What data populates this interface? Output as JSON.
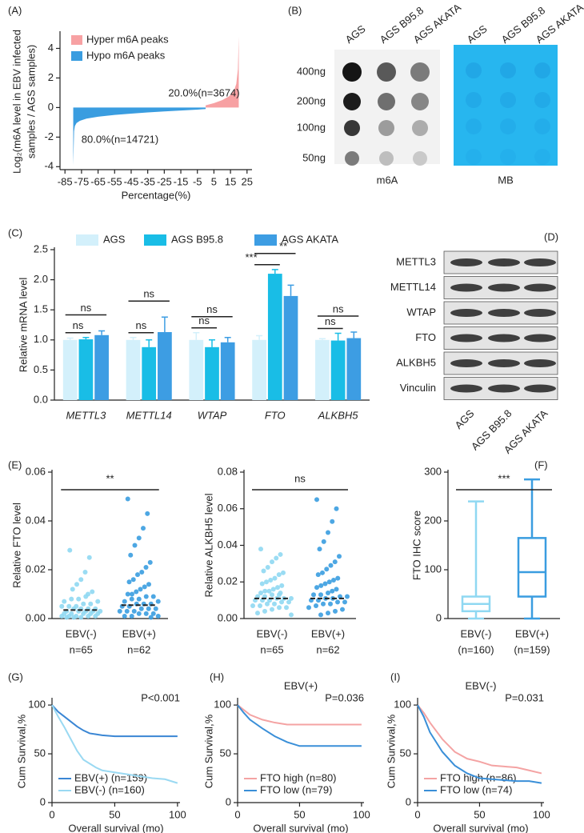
{
  "chart_data": [
    {
      "type": "area",
      "panel_label": "(A)",
      "x_label": "Percentage(%)",
      "y_label": [
        "Log₂(m6A level in EBV infected",
        "samples / AGS samples)"
      ],
      "xlim": [
        -88,
        28
      ],
      "xticks": [
        -85,
        -75,
        -65,
        -55,
        -45,
        -35,
        -25,
        -15,
        -5,
        5,
        15,
        25
      ],
      "ylim": [
        -4.2,
        5
      ],
      "yticks": [
        -4,
        -2,
        0,
        2,
        4
      ],
      "series": [
        {
          "name": "Hyper m6A peaks",
          "color": "#f7a1a3",
          "x": [
            0,
            0,
            5,
            10,
            14,
            17,
            18.5,
            19.5,
            20,
            20
          ],
          "values": [
            0,
            0.15,
            0.3,
            0.5,
            0.75,
            1.1,
            1.6,
            2.6,
            4.8,
            0
          ]
        },
        {
          "name": "Hypo m6A peaks",
          "color": "#3a9de0",
          "x": [
            -80,
            -80,
            -79.5,
            -79,
            -78,
            -76,
            -72,
            -65,
            -55,
            -45,
            -35,
            -25,
            -15,
            -5,
            0,
            0
          ],
          "values": [
            0,
            -3.9,
            -1.6,
            -1.25,
            -1.05,
            -0.9,
            -0.75,
            -0.62,
            -0.5,
            -0.41,
            -0.33,
            -0.26,
            -0.2,
            -0.14,
            -0.1,
            0
          ]
        }
      ],
      "annotations": [
        "20.0%(n=3674)",
        "80.0%(n=14721)"
      ]
    },
    {
      "type": "bar",
      "panel_label": "(C)",
      "y_label": "Relative mRNA level",
      "categories": [
        "METTL3",
        "METTL14",
        "WTAP",
        "FTO",
        "ALKBH5"
      ],
      "ylim": [
        0,
        2.5
      ],
      "yticks": [
        {
          "value": 0,
          "label": "0.0"
        },
        0.5,
        {
          "value": 1,
          "label": "1.0"
        },
        1.5,
        {
          "value": 2,
          "label": "2.0"
        },
        2.5
      ],
      "series": [
        {
          "name": "AGS",
          "color": "#d3f0fb",
          "values": [
            1,
            1,
            1,
            1,
            1
          ],
          "errors": [
            0.03,
            0.04,
            0.12,
            0.07,
            0.02
          ]
        },
        {
          "name": "AGS B95.8",
          "color": "#19bde6",
          "values": [
            1.01,
            0.88,
            0.88,
            2.1,
            0.99
          ],
          "errors": [
            0.03,
            0.12,
            0.12,
            0.07,
            0.12
          ]
        },
        {
          "name": "AGS AKATA",
          "color": "#3d9de3",
          "values": [
            1.08,
            1.13,
            0.96,
            1.73,
            1.03
          ],
          "errors": [
            0.07,
            0.25,
            0.08,
            0.18,
            0.1
          ]
        }
      ],
      "significance": [
        [
          "ns",
          "ns"
        ],
        [
          "ns",
          "ns"
        ],
        [
          "ns",
          "ns"
        ],
        [
          "***",
          "**"
        ],
        [
          "ns",
          "ns"
        ]
      ]
    },
    {
      "type": "strip",
      "panel_label": "(E)",
      "y_label": "Relative FTO level",
      "significance": "**",
      "ylim": [
        0,
        0.06
      ],
      "yticks": [
        {
          "value": 0,
          "label": "0.00"
        },
        0.02,
        0.04,
        0.06
      ],
      "groups": [
        {
          "name": "EBV(-)",
          "n_label": "n=65",
          "color": "#8fd8f2",
          "median": 0.0035,
          "values": [
            0.028,
            0.025,
            0.019,
            0.016,
            0.014,
            0.012,
            0.011,
            0.01,
            0.009,
            0.008,
            0.008,
            0.007,
            0.007,
            0.006,
            0.006,
            0.005,
            0.005,
            0.005,
            0.004,
            0.004,
            0.004,
            0.004,
            0.003,
            0.003,
            0.003,
            0.003,
            0.003,
            0.002,
            0.002,
            0.002,
            0.002,
            0.002,
            0.001,
            0.001,
            0.001,
            0.001,
            0.001,
            0.0005,
            0.0005,
            0.0005
          ]
        },
        {
          "name": "EBV(+)",
          "n_label": "n=62",
          "color": "#3a9de0",
          "median": 0.0055,
          "values": [
            0.049,
            0.043,
            0.037,
            0.033,
            0.03,
            0.026,
            0.023,
            0.021,
            0.019,
            0.018,
            0.016,
            0.015,
            0.014,
            0.013,
            0.012,
            0.011,
            0.01,
            0.01,
            0.009,
            0.009,
            0.008,
            0.008,
            0.007,
            0.007,
            0.006,
            0.006,
            0.006,
            0.005,
            0.005,
            0.004,
            0.004,
            0.004,
            0.003,
            0.003,
            0.003,
            0.002,
            0.002,
            0.002,
            0.001,
            0.001,
            0.001,
            0.0005
          ]
        }
      ]
    },
    {
      "type": "strip",
      "y_label": "Relative ALKBH5 level",
      "significance": "ns",
      "ylim": [
        0,
        0.08
      ],
      "yticks": [
        {
          "value": 0,
          "label": "0.00"
        },
        0.02,
        0.04,
        0.06,
        0.08
      ],
      "groups": [
        {
          "name": "EBV(-)",
          "n_label": "n=65",
          "color": "#8fd8f2",
          "median": 0.011,
          "values": [
            0.038,
            0.035,
            0.033,
            0.031,
            0.028,
            0.026,
            0.025,
            0.024,
            0.022,
            0.021,
            0.02,
            0.019,
            0.018,
            0.017,
            0.016,
            0.015,
            0.015,
            0.014,
            0.014,
            0.013,
            0.013,
            0.012,
            0.012,
            0.011,
            0.011,
            0.011,
            0.01,
            0.01,
            0.01,
            0.009,
            0.009,
            0.008,
            0.008,
            0.007,
            0.007,
            0.006,
            0.006,
            0.005,
            0.004,
            0.003,
            0.002
          ]
        },
        {
          "name": "EBV(+)",
          "n_label": "n=62",
          "color": "#3a9de0",
          "median": 0.011,
          "values": [
            0.065,
            0.06,
            0.053,
            0.047,
            0.042,
            0.038,
            0.034,
            0.031,
            0.029,
            0.027,
            0.025,
            0.024,
            0.022,
            0.021,
            0.02,
            0.019,
            0.018,
            0.017,
            0.016,
            0.015,
            0.014,
            0.013,
            0.013,
            0.012,
            0.012,
            0.011,
            0.011,
            0.01,
            0.01,
            0.009,
            0.009,
            0.008,
            0.008,
            0.007,
            0.006,
            0.005,
            0.004,
            0.003,
            0.002
          ]
        }
      ]
    },
    {
      "type": "box",
      "panel_label": "(F)",
      "y_label": "FTO IHC score",
      "significance": "***",
      "ylim": [
        0,
        300
      ],
      "yticks": [
        0,
        100,
        200,
        300
      ],
      "groups": [
        {
          "name": "EBV(-)",
          "n_label": "(n=160)",
          "color": "#8fd8f2",
          "min": 0,
          "q1": 15,
          "median": 30,
          "q3": 45,
          "max": 240
        },
        {
          "name": "EBV(+)",
          "n_label": "(n=159)",
          "color": "#3a9de0",
          "min": 0,
          "q1": 45,
          "median": 95,
          "q3": 165,
          "max": 285
        }
      ]
    },
    {
      "type": "line",
      "panel_label": "(G)",
      "annotation": "P<0.001",
      "x_label": "Overall survival (mo)",
      "y_label": "Cum Survival,%",
      "xlim": [
        0,
        102
      ],
      "xticks": [
        0,
        50,
        100
      ],
      "ylim": [
        0,
        105
      ],
      "yticks": [
        0,
        50,
        100
      ],
      "series": [
        {
          "name": "EBV(+) (n=159)",
          "color": "#3a86d4",
          "x": [
            0,
            5,
            10,
            15,
            20,
            25,
            30,
            35,
            40,
            50,
            60,
            100
          ],
          "values": [
            100,
            93,
            88,
            83,
            78,
            74,
            71,
            70,
            69,
            68,
            68,
            68
          ]
        },
        {
          "name": "EBV(-) (n=160)",
          "color": "#9ad9f2",
          "x": [
            0,
            5,
            10,
            15,
            20,
            25,
            30,
            35,
            40,
            50,
            60,
            70,
            80,
            90,
            100
          ],
          "values": [
            100,
            88,
            77,
            65,
            53,
            44,
            40,
            36,
            33,
            31,
            29,
            27,
            25,
            24,
            20
          ]
        }
      ]
    },
    {
      "type": "line",
      "panel_label": "(H)",
      "title": "EBV(+)",
      "annotation": "P=0.036",
      "x_label": "Overall survival (mo)",
      "y_label": "Cum Survival,%",
      "xlim": [
        0,
        102
      ],
      "xticks": [
        0,
        50,
        100
      ],
      "ylim": [
        0,
        105
      ],
      "yticks": [
        0,
        50,
        100
      ],
      "series": [
        {
          "name": "FTO high (n=80)",
          "color": "#f4a3a3",
          "x": [
            0,
            5,
            10,
            20,
            30,
            40,
            100
          ],
          "values": [
            100,
            95,
            90,
            85,
            82,
            80,
            80
          ]
        },
        {
          "name": "FTO low (n=79)",
          "color": "#3a8fd8",
          "x": [
            0,
            5,
            10,
            20,
            30,
            40,
            50,
            100
          ],
          "values": [
            100,
            92,
            85,
            76,
            68,
            62,
            58,
            58
          ]
        }
      ]
    },
    {
      "type": "line",
      "panel_label": "(I)",
      "title": "EBV(-)",
      "annotation": "P=0.031",
      "x_label": "Overall survival (mo)",
      "y_label": "Cum Survival,%",
      "xlim": [
        0,
        102
      ],
      "xticks": [
        0,
        50,
        100
      ],
      "ylim": [
        0,
        105
      ],
      "yticks": [
        0,
        50,
        100
      ],
      "series": [
        {
          "name": "FTO high (n=86)",
          "color": "#f4a3a3",
          "x": [
            0,
            5,
            10,
            20,
            30,
            40,
            50,
            60,
            70,
            80,
            90,
            100
          ],
          "values": [
            100,
            92,
            82,
            65,
            52,
            45,
            42,
            38,
            37,
            36,
            33,
            30
          ]
        },
        {
          "name": "FTO low (n=74)",
          "color": "#3a8fd8",
          "x": [
            0,
            5,
            10,
            20,
            30,
            40,
            50,
            60,
            70,
            80,
            90,
            100
          ],
          "values": [
            100,
            88,
            72,
            52,
            38,
            30,
            25,
            24,
            23,
            22,
            22,
            20
          ]
        }
      ]
    }
  ],
  "dot_blot": {
    "panel_label": "(B)",
    "samples": [
      "AGS",
      "AGS B95.8",
      "AGS AKATA"
    ],
    "amounts": [
      "400ng",
      "200ng",
      "100ng",
      "50ng"
    ],
    "stains": [
      "m6A",
      "MB"
    ]
  },
  "western_blot": {
    "panel_label": "(D)",
    "proteins": [
      "METTL3",
      "METTL14",
      "WTAP",
      "FTO",
      "ALKBH5",
      "Vinculin"
    ],
    "samples": [
      "AGS",
      "AGS B95.8",
      "AGS AKATA"
    ]
  }
}
